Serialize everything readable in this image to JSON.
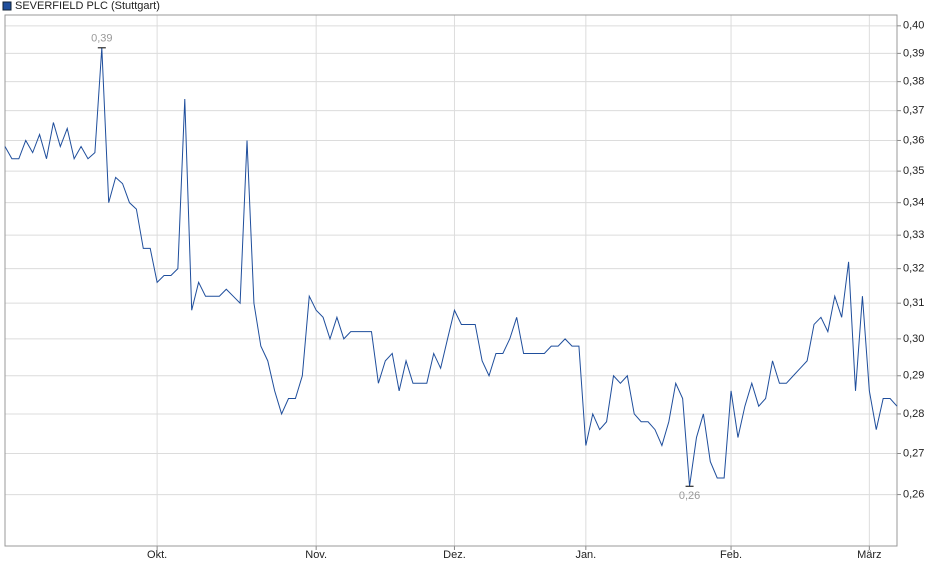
{
  "chart_data": {
    "type": "line",
    "legend": "top-left",
    "log_scale": true,
    "grid": true,
    "ylim": [
      0.248,
      0.404
    ],
    "yticks": [
      {
        "value": 0.26,
        "label": "0,26"
      },
      {
        "value": 0.27,
        "label": "0,27"
      },
      {
        "value": 0.28,
        "label": "0,28"
      },
      {
        "value": 0.29,
        "label": "0,29"
      },
      {
        "value": 0.3,
        "label": "0,30"
      },
      {
        "value": 0.31,
        "label": "0,31"
      },
      {
        "value": 0.32,
        "label": "0,32"
      },
      {
        "value": 0.33,
        "label": "0,33"
      },
      {
        "value": 0.34,
        "label": "0,34"
      },
      {
        "value": 0.35,
        "label": "0,35"
      },
      {
        "value": 0.36,
        "label": "0,36"
      },
      {
        "value": 0.37,
        "label": "0,37"
      },
      {
        "value": 0.38,
        "label": "0,38"
      },
      {
        "value": 0.39,
        "label": "0,39"
      },
      {
        "value": 0.4,
        "label": "0,40"
      }
    ],
    "categories": [
      null,
      null,
      null,
      null,
      null,
      null,
      null,
      null,
      null,
      null,
      null,
      null,
      null,
      null,
      null,
      null,
      null,
      null,
      null,
      null,
      null,
      null,
      "Okt.",
      null,
      null,
      null,
      null,
      null,
      null,
      null,
      null,
      null,
      null,
      null,
      null,
      null,
      null,
      null,
      null,
      null,
      null,
      null,
      null,
      null,
      null,
      "Nov.",
      null,
      null,
      null,
      null,
      null,
      null,
      null,
      null,
      null,
      null,
      null,
      null,
      null,
      null,
      null,
      null,
      null,
      null,
      null,
      "Dez.",
      null,
      null,
      null,
      null,
      null,
      null,
      null,
      null,
      null,
      null,
      null,
      null,
      null,
      null,
      null,
      null,
      null,
      null,
      "Jan.",
      null,
      null,
      null,
      null,
      null,
      null,
      null,
      null,
      null,
      null,
      null,
      null,
      null,
      null,
      null,
      null,
      null,
      null,
      null,
      null,
      "Feb.",
      null,
      null,
      null,
      null,
      null,
      null,
      null,
      null,
      null,
      null,
      null,
      null,
      null,
      null,
      null,
      null,
      null,
      null,
      null,
      "März",
      null,
      null,
      null,
      null
    ],
    "series": [
      {
        "name": "SEVERFIELD PLC (Stuttgart)",
        "color": "#1f4e9c",
        "values": [
          0.358,
          0.354,
          0.354,
          0.36,
          0.356,
          0.362,
          0.354,
          0.366,
          0.358,
          0.364,
          0.354,
          0.358,
          0.354,
          0.356,
          0.392,
          0.34,
          0.348,
          0.346,
          0.34,
          0.338,
          0.326,
          0.326,
          0.316,
          0.318,
          0.318,
          0.32,
          0.374,
          0.308,
          0.316,
          0.312,
          0.312,
          0.312,
          0.314,
          0.312,
          0.31,
          0.36,
          0.31,
          0.298,
          0.294,
          0.286,
          0.28,
          0.284,
          0.284,
          0.29,
          0.312,
          0.308,
          0.306,
          0.3,
          0.306,
          0.3,
          0.302,
          0.302,
          0.302,
          0.302,
          0.288,
          0.294,
          0.296,
          0.286,
          0.294,
          0.288,
          0.288,
          0.288,
          0.296,
          0.292,
          0.3,
          0.308,
          0.304,
          0.304,
          0.304,
          0.294,
          0.29,
          0.296,
          0.296,
          0.3,
          0.306,
          0.296,
          0.296,
          0.296,
          0.296,
          0.298,
          0.298,
          0.3,
          0.298,
          0.298,
          0.272,
          0.28,
          0.276,
          0.278,
          0.29,
          0.288,
          0.29,
          0.28,
          0.278,
          0.278,
          0.276,
          0.272,
          0.278,
          0.288,
          0.284,
          0.262,
          0.274,
          0.28,
          0.268,
          0.264,
          0.264,
          0.286,
          0.274,
          0.282,
          0.288,
          0.282,
          0.284,
          0.294,
          0.288,
          0.288,
          0.29,
          0.292,
          0.294,
          0.304,
          0.306,
          0.302,
          0.312,
          0.306,
          0.322,
          0.286,
          0.312,
          0.286,
          0.276,
          0.284,
          0.284,
          0.282
        ],
        "value_labels": [
          null,
          null,
          null,
          null,
          null,
          null,
          null,
          null,
          null,
          null,
          null,
          null,
          null,
          null,
          "0,39",
          null,
          null,
          null,
          null,
          null,
          null,
          null,
          null,
          null,
          null,
          null,
          null,
          null,
          null,
          null,
          null,
          null,
          null,
          null,
          null,
          null,
          null,
          null,
          null,
          null,
          null,
          null,
          null,
          null,
          null,
          null,
          null,
          null,
          null,
          null,
          null,
          null,
          null,
          null,
          null,
          null,
          null,
          null,
          null,
          null,
          null,
          null,
          null,
          null,
          null,
          null,
          null,
          null,
          null,
          null,
          null,
          null,
          null,
          null,
          null,
          null,
          null,
          null,
          null,
          null,
          null,
          null,
          null,
          null,
          null,
          null,
          null,
          null,
          null,
          null,
          null,
          null,
          null,
          null,
          null,
          null,
          null,
          null,
          null,
          "0,26",
          null,
          null,
          null,
          null,
          null,
          null,
          null,
          null,
          null,
          null,
          null,
          null,
          null,
          null,
          null,
          null,
          null,
          null,
          null,
          null,
          null,
          null,
          null,
          null,
          null,
          null,
          null,
          null,
          null,
          null
        ]
      }
    ]
  }
}
